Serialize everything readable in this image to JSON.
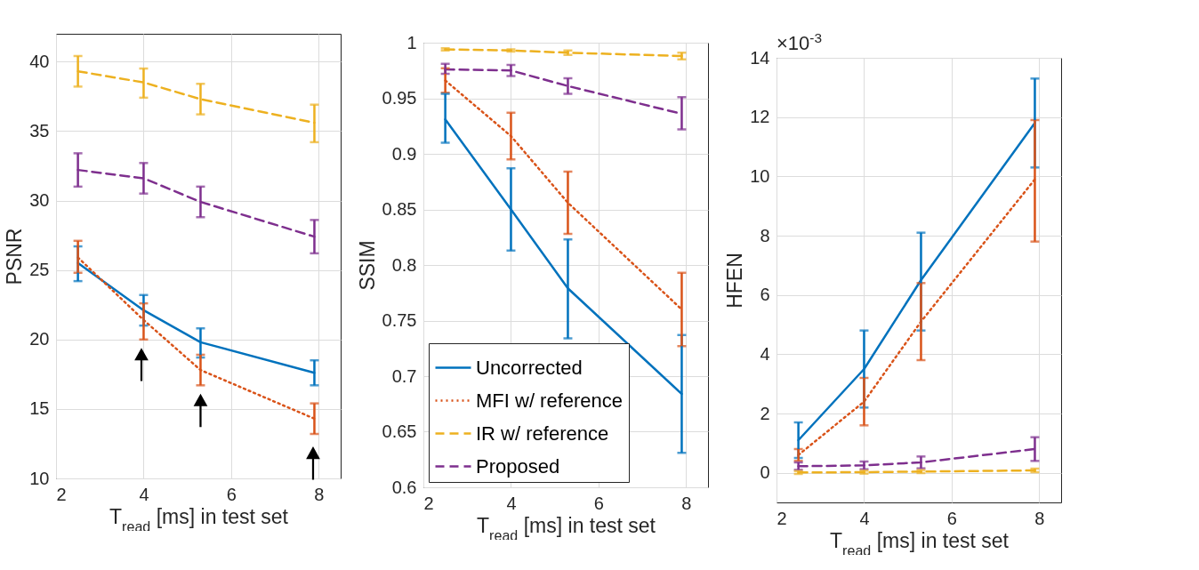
{
  "chart_data": [
    {
      "type": "line",
      "xlabel": "T$_{read}$ [ms] in test set",
      "ylabel": "PSNR",
      "x": [
        2.5,
        4,
        5.3,
        7.9
      ],
      "xlim": [
        2,
        8.5
      ],
      "xticks": [
        2,
        4,
        6,
        8
      ],
      "ylim": [
        10,
        42
      ],
      "yticks": [
        10,
        15,
        20,
        25,
        30,
        35,
        40
      ],
      "grid": true,
      "legend": false,
      "series": [
        {
          "color": "#0072bd",
          "line_style": "solid",
          "values": [
            25.5,
            22.1,
            19.8,
            17.6
          ],
          "errors": [
            [
              24.2,
              26.7
            ],
            [
              21,
              23.2
            ],
            [
              18.7,
              20.8
            ],
            [
              16.7,
              18.5
            ]
          ]
        },
        {
          "color": "#d95319",
          "line_style": "dotted",
          "values": [
            25.9,
            21.4,
            17.8,
            14.3
          ],
          "errors": [
            [
              24.8,
              27.1
            ],
            [
              20,
              22.6
            ],
            [
              16.7,
              18.9
            ],
            [
              13.2,
              15.4
            ]
          ]
        },
        {
          "color": "#edb120",
          "line_style": "dashed",
          "values": [
            39.3,
            38.5,
            37.3,
            35.6
          ],
          "errors": [
            [
              38.2,
              40.4
            ],
            [
              37.4,
              39.5
            ],
            [
              36.2,
              38.4
            ],
            [
              34.2,
              36.9
            ]
          ]
        },
        {
          "color": "#7e2f8e",
          "line_style": "dashed",
          "values": [
            32.2,
            31.6,
            29.9,
            27.4
          ],
          "errors": [
            [
              31,
              33.4
            ],
            [
              30.5,
              32.7
            ],
            [
              28.8,
              31
            ],
            [
              26.2,
              28.6
            ]
          ]
        }
      ]
    },
    {
      "type": "line",
      "xlabel": "T$_{read}$ [ms] in test set",
      "ylabel": "SSIM",
      "x": [
        2.5,
        4,
        5.3,
        7.9
      ],
      "xlim": [
        2,
        8.5
      ],
      "xticks": [
        2,
        4,
        6,
        8
      ],
      "ylim": [
        0.6,
        1
      ],
      "yticks": [
        0.6,
        0.65,
        0.7,
        0.75,
        0.8,
        0.85,
        0.9,
        0.95,
        1
      ],
      "grid": true,
      "legend": "bottom left",
      "series": [
        {
          "name": "Uncorrected",
          "color": "#0072bd",
          "line_style": "solid",
          "values": [
            0.931,
            0.85,
            0.779,
            0.684
          ],
          "errors": [
            [
              0.91,
              0.954
            ],
            [
              0.813,
              0.887
            ],
            [
              0.734,
              0.823
            ],
            [
              0.631,
              0.737
            ]
          ]
        },
        {
          "name": "MFI w/ reference",
          "color": "#d95319",
          "line_style": "dotted",
          "values": [
            0.966,
            0.916,
            0.856,
            0.76
          ],
          "errors": [
            [
              0.955,
              0.977
            ],
            [
              0.895,
              0.937
            ],
            [
              0.828,
              0.884
            ],
            [
              0.727,
              0.793
            ]
          ]
        },
        {
          "name": "IR w/ reference",
          "color": "#edb120",
          "line_style": "dashed",
          "values": [
            0.994,
            0.993,
            0.991,
            0.988
          ],
          "errors": [
            [
              0.993,
              0.995
            ],
            [
              0.992,
              0.994
            ],
            [
              0.989,
              0.993
            ],
            [
              0.985,
              0.991
            ]
          ]
        },
        {
          "name": "Proposed",
          "color": "#7e2f8e",
          "line_style": "dashed",
          "values": [
            0.976,
            0.975,
            0.961,
            0.936
          ],
          "errors": [
            [
              0.972,
              0.981
            ],
            [
              0.97,
              0.98
            ],
            [
              0.954,
              0.968
            ],
            [
              0.922,
              0.951
            ]
          ]
        }
      ]
    },
    {
      "type": "line",
      "xlabel": "T$_{read}$ [ms] in test set",
      "ylabel": "HFEN",
      "annotations": [
        "×10$^{-3}$"
      ],
      "x": [
        2.5,
        4,
        5.3,
        7.9
      ],
      "xlim": [
        2,
        8.5
      ],
      "xticks": [
        2,
        4,
        6,
        8
      ],
      "ylim": [
        -1,
        14
      ],
      "yticks": [
        0,
        2,
        4,
        6,
        8,
        10,
        12,
        14
      ],
      "grid": true,
      "legend": false,
      "series": [
        {
          "color": "#0072bd",
          "line_style": "solid",
          "values": [
            1.1,
            3.5,
            6.5,
            11.8
          ],
          "errors": [
            [
              0.5,
              1.7
            ],
            [
              2.2,
              4.8
            ],
            [
              4.8,
              8.1
            ],
            [
              10.3,
              13.3
            ]
          ]
        },
        {
          "color": "#d95319",
          "line_style": "dotted",
          "values": [
            0.6,
            2.4,
            5.1,
            9.9
          ],
          "errors": [
            [
              0.4,
              0.8
            ],
            [
              1.6,
              3.2
            ],
            [
              3.8,
              6.4
            ],
            [
              7.8,
              11.9
            ]
          ]
        },
        {
          "color": "#edb120",
          "line_style": "dashed",
          "values": [
            0.01,
            0.02,
            0.04,
            0.08
          ],
          "errors": [
            [
              -0.04,
              0.06
            ],
            [
              -0.03,
              0.07
            ],
            [
              -0.01,
              0.09
            ],
            [
              0.02,
              0.14
            ]
          ]
        },
        {
          "color": "#7e2f8e",
          "line_style": "dashed",
          "values": [
            0.22,
            0.25,
            0.35,
            0.8
          ],
          "errors": [
            [
              0.1,
              0.35
            ],
            [
              0.12,
              0.38
            ],
            [
              0.15,
              0.55
            ],
            [
              0.4,
              1.2
            ]
          ]
        }
      ]
    }
  ]
}
